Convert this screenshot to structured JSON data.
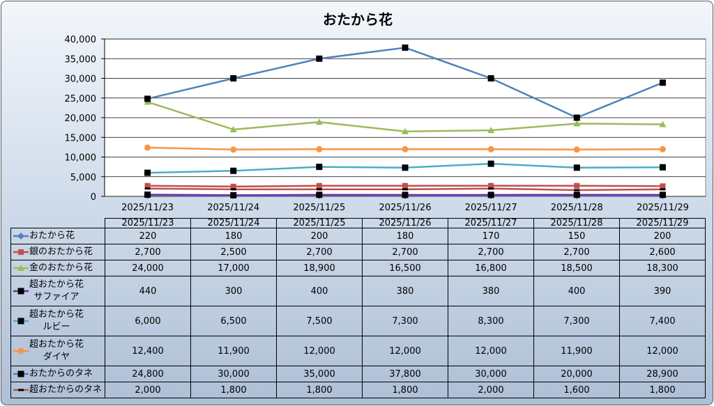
{
  "chart_data": {
    "type": "line",
    "title": "おたから花",
    "categories": [
      "2025/11/23",
      "2025/11/24",
      "2025/11/25",
      "2025/11/26",
      "2025/11/27",
      "2025/11/28",
      "2025/11/29"
    ],
    "ylim": [
      0,
      40000
    ],
    "yticks": [
      "0",
      "5,000",
      "10,000",
      "15,000",
      "20,000",
      "25,000",
      "30,000",
      "35,000",
      "40,000"
    ],
    "ytick_values": [
      0,
      5000,
      10000,
      15000,
      20000,
      25000,
      30000,
      35000,
      40000
    ],
    "grid": true,
    "legend": "data-table",
    "series": [
      {
        "name": "おたから花",
        "label_lines": [
          "おたから花"
        ],
        "color": "#4f81bd",
        "marker": "diamond",
        "values": [
          220,
          180,
          200,
          180,
          170,
          150,
          200
        ],
        "display": [
          "220",
          "180",
          "200",
          "180",
          "170",
          "150",
          "200"
        ]
      },
      {
        "name": "銀のおたから花",
        "label_lines": [
          "銀のおたから花"
        ],
        "color": "#c0504d",
        "marker": "square",
        "values": [
          2700,
          2500,
          2700,
          2700,
          2700,
          2700,
          2600
        ],
        "display": [
          "2,700",
          "2,500",
          "2,700",
          "2,700",
          "2,700",
          "2,700",
          "2,600"
        ]
      },
      {
        "name": "金のおたから花",
        "label_lines": [
          "金のおたから花"
        ],
        "color": "#9bbb59",
        "marker": "triangle",
        "values": [
          24000,
          17000,
          18900,
          16500,
          16800,
          18500,
          18300
        ],
        "display": [
          "24,000",
          "17,000",
          "18,900",
          "16,500",
          "16,800",
          "18,500",
          "18,300"
        ]
      },
      {
        "name": "超おたから花サファイア",
        "label_lines": [
          "超おたから花",
          "サファイア"
        ],
        "color": "#7030a0",
        "marker": "blacksquare",
        "values": [
          440,
          300,
          400,
          380,
          380,
          400,
          390
        ],
        "display": [
          "440",
          "300",
          "400",
          "380",
          "380",
          "400",
          "390"
        ]
      },
      {
        "name": "超おたから花ルビー",
        "label_lines": [
          "超おたから花",
          "ルビー"
        ],
        "color": "#4bacc6",
        "marker": "blacksquare",
        "values": [
          6000,
          6500,
          7500,
          7300,
          8300,
          7300,
          7400
        ],
        "display": [
          "6,000",
          "6,500",
          "7,500",
          "7,300",
          "8,300",
          "7,300",
          "7,400"
        ]
      },
      {
        "name": "超おたから花ダイヤ",
        "label_lines": [
          "超おたから花",
          "ダイヤ"
        ],
        "color": "#f79646",
        "marker": "circle",
        "values": [
          12400,
          11900,
          12000,
          12000,
          12000,
          11900,
          12000
        ],
        "display": [
          "12,400",
          "11,900",
          "12,000",
          "12,000",
          "12,000",
          "11,900",
          "12,000"
        ]
      },
      {
        "name": "おたからのタネ",
        "label_lines": [
          "おたからのタネ"
        ],
        "color": "#4f81bd",
        "marker": "blacksquare",
        "values": [
          24800,
          30000,
          35000,
          37800,
          30000,
          20000,
          28900
        ],
        "display": [
          "24,800",
          "30,000",
          "35,000",
          "37,800",
          "30,000",
          "20,000",
          "28,900"
        ]
      },
      {
        "name": "超おたからのタネ",
        "label_lines": [
          "超おたからのタネ"
        ],
        "color": "#c0504d",
        "marker": "dash",
        "values": [
          2000,
          1800,
          1800,
          1800,
          2000,
          1600,
          1800
        ],
        "display": [
          "2,000",
          "1,800",
          "1,800",
          "1,800",
          "2,000",
          "1,600",
          "1,800"
        ]
      }
    ]
  }
}
